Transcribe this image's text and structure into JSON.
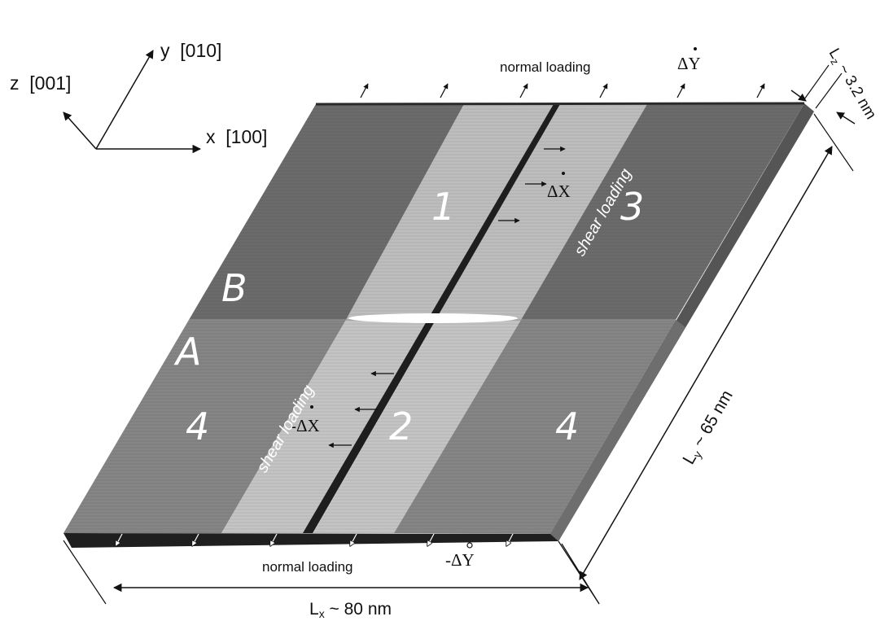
{
  "axes": {
    "x_label": "x  [100]",
    "y_label": "y  [010]",
    "z_label": "z  [001]"
  },
  "regions": {
    "top_left": "3",
    "top_center": "1",
    "top_right": "3",
    "bottom_left": "4",
    "bottom_center": "2",
    "bottom_right": "4",
    "upper_half": "B",
    "lower_half": "A"
  },
  "loading": {
    "top_normal": "normal loading",
    "bottom_normal": "normal loading",
    "top_shear": "shear loading",
    "bottom_shear": "shear loading",
    "top_rate": "ΔY",
    "bottom_rate": "-ΔY",
    "shear_rate_top": "ΔX",
    "shear_rate_bottom": "-ΔX"
  },
  "dimensions": {
    "lx_symbol": "L",
    "lx_sub": "x",
    "lx_value": " ~ 80 nm",
    "ly_symbol": "L",
    "ly_sub": "y",
    "ly_value": " ~ 65 nm",
    "lz_symbol": "L",
    "lz_sub": "z",
    "lz_value": " ~ 3.2 nm"
  },
  "colors": {
    "dark_region": "#6b6b6b",
    "light_region": "#bdbdbd",
    "lower_dark": "#858585",
    "lower_light": "#c4c4c4",
    "crack_plane": "#1e1e1e",
    "edge": "#2a2a2a"
  }
}
